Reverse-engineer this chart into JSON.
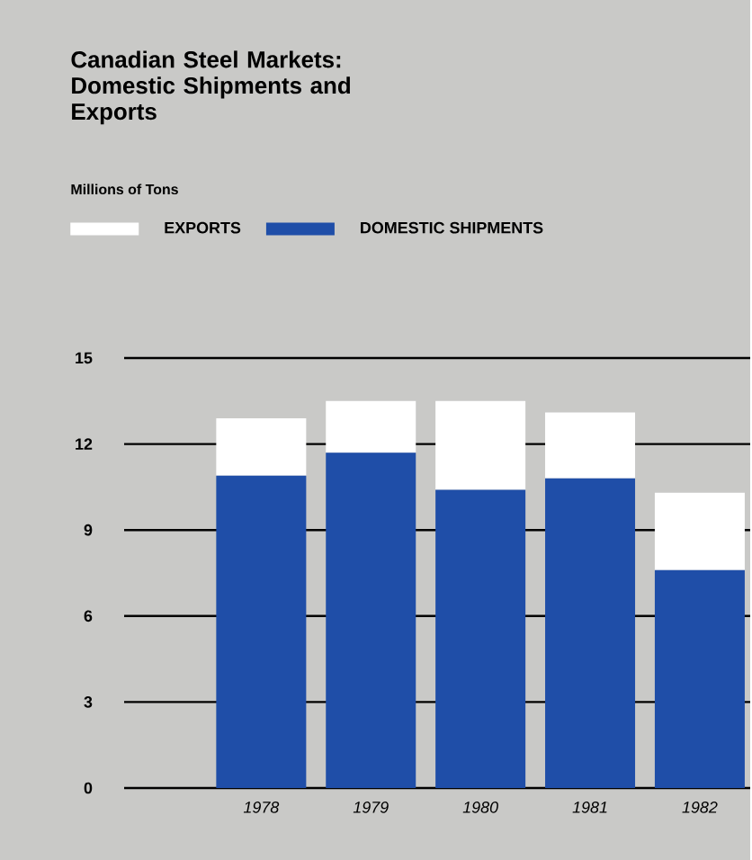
{
  "chart_data": {
    "type": "bar",
    "title": "Canadian Steel Markets: Domestic Shipments and Exports",
    "subtitle": "Millions of Tons",
    "categories": [
      "1978",
      "1979",
      "1980",
      "1981",
      "1982"
    ],
    "series": [
      {
        "name": "DOMESTIC SHIPMENTS",
        "color": "#1f4ea8",
        "values": [
          10.9,
          11.7,
          10.4,
          10.8,
          7.6
        ]
      },
      {
        "name": "EXPORTS",
        "color": "#ffffff",
        "values": [
          2.0,
          1.8,
          3.1,
          2.3,
          2.7
        ]
      }
    ],
    "stacked": true,
    "ylim": [
      0,
      15
    ],
    "yticks": [
      0,
      3,
      6,
      9,
      12,
      15
    ],
    "grid": "y",
    "legend": "top left"
  }
}
